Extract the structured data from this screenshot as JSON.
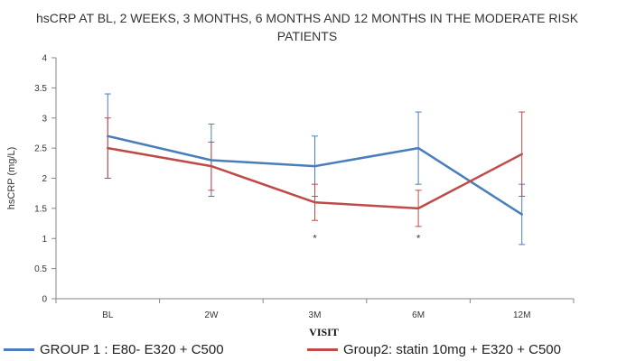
{
  "chart_data": {
    "type": "line",
    "title_lines": [
      "hsCRP AT BL, 2 WEEKS, 3 MONTHS, 6 MONTHS AND 12 MONTHS IN THE MODERATE RISK",
      "PATIENTS"
    ],
    "xlabel": "VISIT",
    "ylabel": "hsCRP (mg/L)",
    "categories": [
      "BL",
      "2W",
      "3M",
      "6M",
      "12M"
    ],
    "ylim": [
      0,
      4
    ],
    "yticks": [
      "0",
      "0.5",
      "1",
      "1.5",
      "2",
      "2.5",
      "3",
      "3.5",
      "4"
    ],
    "grid": false,
    "legend_position": "bottom",
    "series": [
      {
        "name": "GROUP 1 : E80- E320 + C500",
        "color": "#4a7ebb",
        "values": [
          2.7,
          2.3,
          2.2,
          2.5,
          1.4
        ],
        "error_low": [
          2.0,
          1.7,
          1.7,
          1.9,
          0.9
        ],
        "error_high": [
          3.4,
          2.9,
          2.7,
          3.1,
          1.9
        ]
      },
      {
        "name": "Group2: statin 10mg + E320 + C500",
        "color": "#be4b48",
        "values": [
          2.5,
          2.2,
          1.6,
          1.5,
          2.4
        ],
        "error_low": [
          2.0,
          1.8,
          1.3,
          1.2,
          1.7
        ],
        "error_high": [
          3.0,
          2.6,
          1.9,
          1.8,
          3.1
        ]
      }
    ],
    "annotations": [
      {
        "category": "3M",
        "y": 1.0,
        "text": "*"
      },
      {
        "category": "6M",
        "y": 1.0,
        "text": "*"
      }
    ]
  }
}
